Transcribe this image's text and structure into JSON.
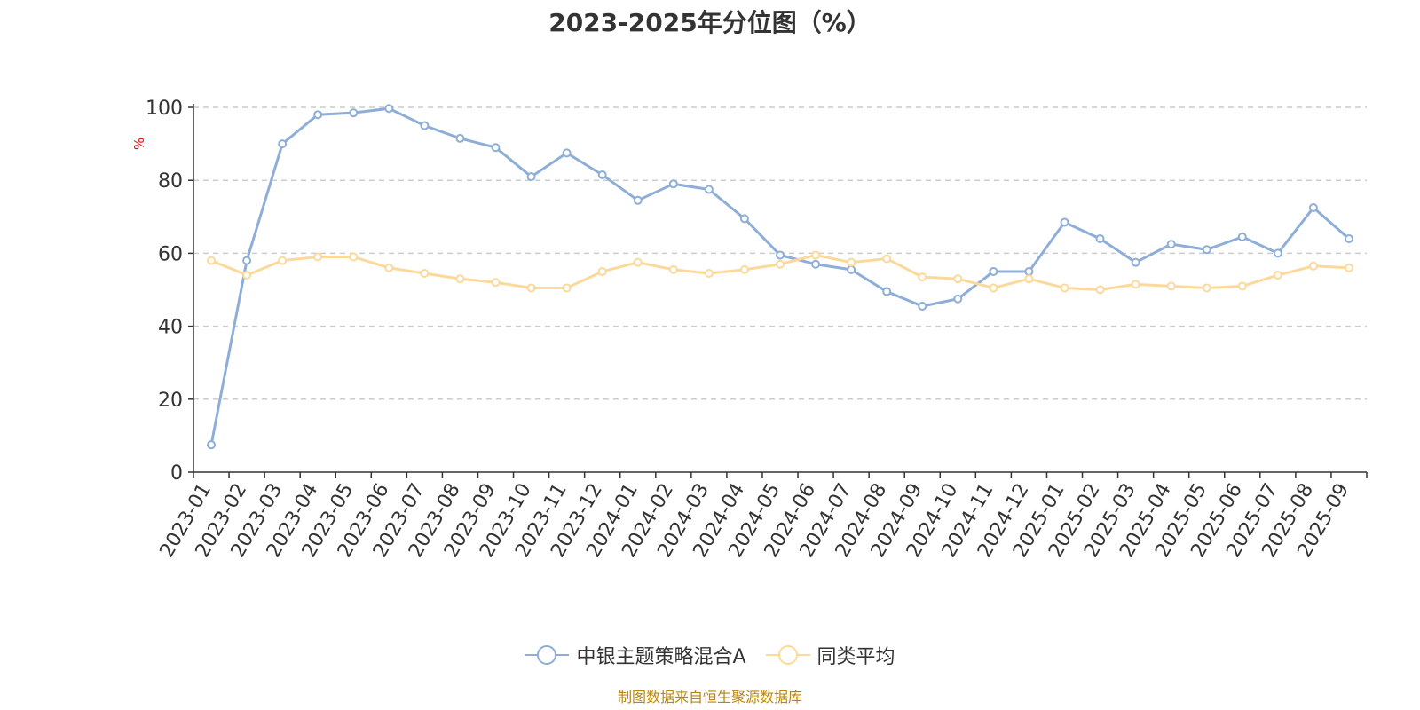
{
  "chart_data": {
    "type": "line",
    "title": "2023-2025年分位图（%）",
    "ylabel": "%",
    "xlabel": "",
    "ylim": [
      0,
      100
    ],
    "yticks": [
      0,
      20,
      40,
      60,
      80,
      100
    ],
    "grid": true,
    "legend_position": "bottom",
    "categories": [
      "2023-01",
      "2023-02",
      "2023-03",
      "2023-04",
      "2023-05",
      "2023-06",
      "2023-07",
      "2023-08",
      "2023-09",
      "2023-10",
      "2023-11",
      "2023-12",
      "2024-01",
      "2024-02",
      "2024-03",
      "2024-04",
      "2024-05",
      "2024-06",
      "2024-07",
      "2024-08",
      "2024-09",
      "2024-10",
      "2024-11",
      "2024-12",
      "2025-01",
      "2025-02",
      "2025-03",
      "2025-04",
      "2025-05",
      "2025-06",
      "2025-07",
      "2025-08",
      "2025-09"
    ],
    "series": [
      {
        "name": "中银主题策略混合A",
        "color": "#8eaed8",
        "values": [
          7.5,
          58,
          90,
          98,
          98.5,
          99.7,
          95,
          91.5,
          89,
          81,
          87.5,
          81.5,
          74.5,
          79,
          77.5,
          69.5,
          59.5,
          57,
          55.5,
          49.5,
          45.5,
          47.5,
          55,
          55,
          68.5,
          64,
          57.5,
          62.5,
          61,
          64.5,
          60,
          72.5,
          64
        ]
      },
      {
        "name": "同类平均",
        "color": "#fcd99b",
        "values": [
          58,
          54,
          58,
          59,
          59,
          56,
          54.5,
          53,
          52,
          50.5,
          50.5,
          55,
          57.5,
          55.5,
          54.5,
          55.5,
          57,
          59.5,
          57.5,
          58.5,
          53.5,
          53,
          50.5,
          53,
          50.5,
          50,
          51.5,
          51,
          50.5,
          51,
          54,
          56.5,
          56
        ]
      }
    ]
  },
  "source_note": "制图数据来自恒生聚源数据库"
}
